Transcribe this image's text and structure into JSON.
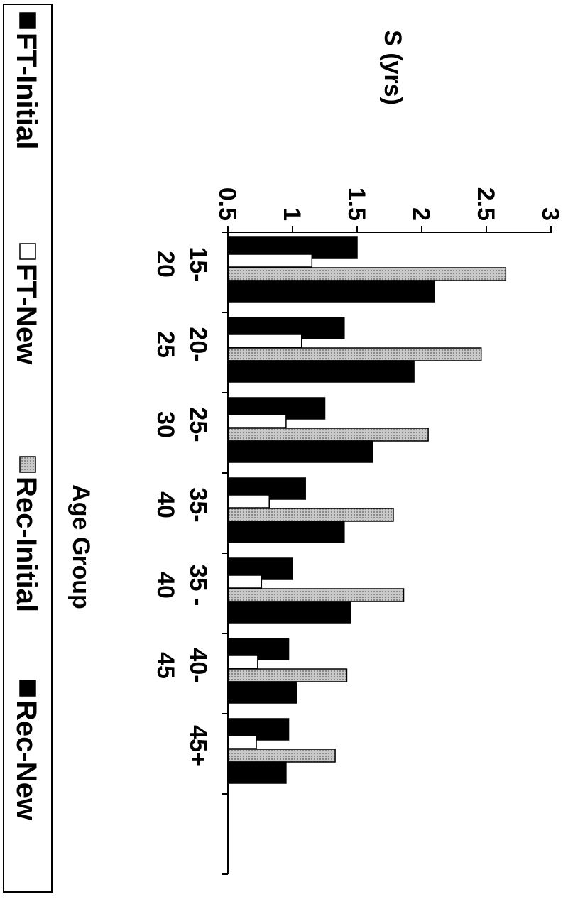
{
  "chart_data": {
    "type": "bar",
    "orientation": "vertical-bars, image rotated 90deg clockwise",
    "ylabel": "S (yrs)",
    "xlabel": "Age Group",
    "ylim": [
      0.5,
      3
    ],
    "yticks": [
      "0.5",
      "1",
      "1.5",
      "2",
      "2.5",
      "3"
    ],
    "grid": false,
    "legend_position": "bottom",
    "categories": [
      [
        "15-",
        "20"
      ],
      [
        "20-",
        "25"
      ],
      [
        "25-",
        "30"
      ],
      [
        "35-",
        "40"
      ],
      [
        "35 -",
        "40"
      ],
      [
        "40-",
        "45"
      ],
      [
        "45+",
        ""
      ]
    ],
    "series": [
      {
        "name": "FT-Initial",
        "fill": "#000000",
        "values": [
          1.5,
          1.4,
          1.25,
          1.1,
          1.0,
          0.97,
          0.97
        ]
      },
      {
        "name": "FT-New",
        "fill": "#ffffff",
        "values": [
          1.15,
          1.07,
          0.95,
          0.82,
          0.76,
          0.73,
          0.72
        ]
      },
      {
        "name": "Rec-Initial",
        "fill": "#b8b8b8",
        "values": [
          2.65,
          2.46,
          2.05,
          1.78,
          1.86,
          1.42,
          1.33
        ]
      },
      {
        "name": "Rec-New",
        "fill": "#000000",
        "values": [
          2.1,
          1.94,
          1.62,
          1.4,
          1.45,
          1.03,
          0.95
        ]
      }
    ]
  }
}
